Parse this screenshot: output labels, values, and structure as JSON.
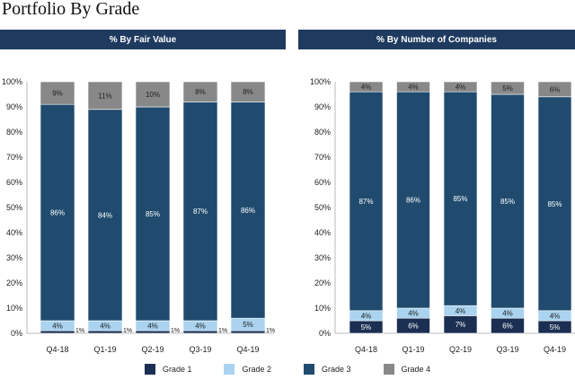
{
  "page_title": "Portfolio By Grade",
  "colors": {
    "Grade 1": "#1b2f52",
    "Grade 2": "#a9d3ef",
    "Grade 3": "#204b6e",
    "Grade 4": "#888888",
    "header_bg": "#1f3a5f"
  },
  "legend": [
    "Grade 1",
    "Grade 2",
    "Grade 3",
    "Grade 4"
  ],
  "chart_data": [
    {
      "type": "bar",
      "stacked": true,
      "title": "% By Fair Value",
      "categories": [
        "Q4-18",
        "Q1-19",
        "Q2-19",
        "Q3-19",
        "Q4-19"
      ],
      "ylim": [
        0,
        100
      ],
      "yticks": [
        "0%",
        "10%",
        "20%",
        "30%",
        "40%",
        "50%",
        "60%",
        "70%",
        "80%",
        "90%",
        "100%"
      ],
      "series": [
        {
          "name": "Grade 1",
          "values": [
            1,
            1,
            1,
            1,
            1
          ],
          "labels": [
            "1%",
            "1%",
            "1%",
            "1%",
            "1%"
          ]
        },
        {
          "name": "Grade 2",
          "values": [
            4,
            4,
            4,
            4,
            5
          ],
          "labels": [
            "4%",
            "4%",
            "4%",
            "4%",
            "5%"
          ]
        },
        {
          "name": "Grade 3",
          "values": [
            86,
            84,
            85,
            87,
            86
          ],
          "labels": [
            "86%",
            "84%",
            "85%",
            "87%",
            "86%"
          ]
        },
        {
          "name": "Grade 4",
          "values": [
            9,
            11,
            10,
            8,
            8
          ],
          "labels": [
            "9%",
            "11%",
            "10%",
            "8%",
            "8%"
          ]
        }
      ]
    },
    {
      "type": "bar",
      "stacked": true,
      "title": "% By Number of Companies",
      "categories": [
        "Q4-18",
        "Q1-19",
        "Q2-19",
        "Q3-19",
        "Q4-19"
      ],
      "ylim": [
        0,
        100
      ],
      "yticks": [
        "0%",
        "10%",
        "20%",
        "30%",
        "40%",
        "50%",
        "60%",
        "70%",
        "80%",
        "90%",
        "100%"
      ],
      "series": [
        {
          "name": "Grade 1",
          "values": [
            5,
            6,
            7,
            6,
            5
          ],
          "labels": [
            "5%",
            "6%",
            "7%",
            "6%",
            "5%"
          ]
        },
        {
          "name": "Grade 2",
          "values": [
            4,
            4,
            4,
            4,
            4
          ],
          "labels": [
            "4%",
            "4%",
            "4%",
            "4%",
            "4%"
          ]
        },
        {
          "name": "Grade 3",
          "values": [
            87,
            86,
            85,
            85,
            85
          ],
          "labels": [
            "87%",
            "86%",
            "85%",
            "85%",
            "85%"
          ]
        },
        {
          "name": "Grade 4",
          "values": [
            4,
            4,
            4,
            5,
            6
          ],
          "labels": [
            "4%",
            "4%",
            "4%",
            "5%",
            "6%"
          ]
        }
      ]
    }
  ]
}
